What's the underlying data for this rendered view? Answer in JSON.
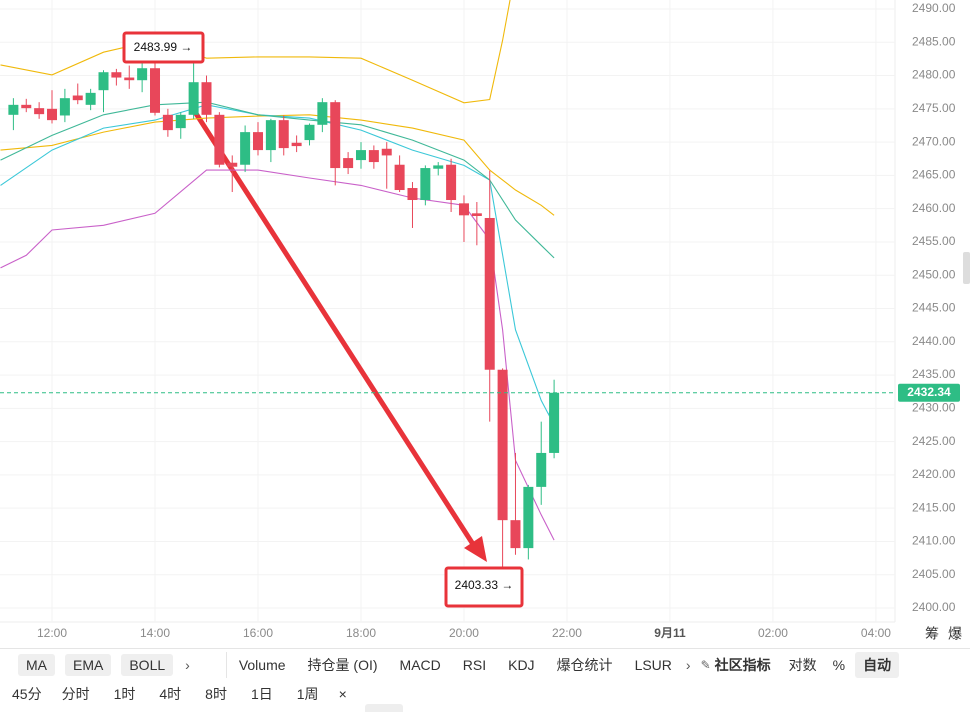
{
  "chart_data": {
    "type": "candlestick",
    "candles": {
      "x": [
        11.25,
        11.5,
        11.75,
        12,
        12.25,
        12.5,
        12.75,
        13,
        13.25,
        13.5,
        13.75,
        14,
        14.25,
        14.5,
        14.75,
        15,
        15.25,
        15.5,
        15.75,
        16,
        16.25,
        16.5,
        16.75,
        17,
        17.25,
        17.5,
        17.75,
        18,
        18.25,
        18.5,
        18.75,
        19,
        19.25,
        19.5,
        19.75,
        20,
        20.25,
        20.5,
        20.75,
        21,
        21.25,
        21.5,
        21.75
      ],
      "open": [
        2474.1,
        2475.6,
        2475.1,
        2475.0,
        2474.0,
        2477.0,
        2475.6,
        2477.8,
        2480.5,
        2479.7,
        2479.3,
        2481.1,
        2474.1,
        2472.1,
        2474.1,
        2479.0,
        2474.1,
        2466.9,
        2466.6,
        2471.5,
        2468.8,
        2473.3,
        2469.9,
        2470.3,
        2472.6,
        2476.0,
        2467.6,
        2467.3,
        2468.8,
        2469.0,
        2466.6,
        2463.1,
        2461.3,
        2466.0,
        2466.6,
        2460.8,
        2459.3,
        2458.6,
        2435.8,
        2413.2,
        2409.0,
        2418.2,
        2423.3
      ],
      "high": [
        2476.6,
        2476.5,
        2476.0,
        2477.8,
        2478.0,
        2478.8,
        2478.0,
        2480.8,
        2481.0,
        2481.5,
        2483.2,
        2482.0,
        2475.0,
        2474.5,
        2483.99,
        2480.0,
        2474.5,
        2468.0,
        2472.5,
        2473.0,
        2473.5,
        2474.0,
        2471.0,
        2472.8,
        2476.6,
        2476.3,
        2468.5,
        2470.0,
        2469.5,
        2470.0,
        2468.0,
        2464.0,
        2466.5,
        2467.0,
        2467.5,
        2462.0,
        2461.0,
        2465.7,
        2436.0,
        2423.3,
        2418.5,
        2428.0,
        2434.3
      ],
      "low": [
        2471.8,
        2474.5,
        2473.5,
        2472.8,
        2473.0,
        2475.7,
        2474.8,
        2474.5,
        2478.5,
        2478.0,
        2477.5,
        2474.0,
        2470.8,
        2470.5,
        2473.5,
        2473.0,
        2466.2,
        2462.5,
        2465.5,
        2468.0,
        2467.0,
        2468.0,
        2468.5,
        2469.5,
        2471.5,
        2463.5,
        2465.2,
        2466.0,
        2466.0,
        2463.0,
        2462.5,
        2457.1,
        2460.5,
        2465.0,
        2459.5,
        2455.0,
        2454.5,
        2428.0,
        2403.33,
        2408.0,
        2407.3,
        2415.5,
        2422.5
      ],
      "close": [
        2475.6,
        2475.1,
        2474.2,
        2473.3,
        2476.6,
        2476.3,
        2477.4,
        2480.5,
        2479.7,
        2479.3,
        2481.1,
        2474.4,
        2471.8,
        2474.1,
        2479.0,
        2474.1,
        2466.6,
        2466.3,
        2471.5,
        2468.8,
        2473.3,
        2469.1,
        2469.4,
        2472.6,
        2476.0,
        2466.1,
        2466.1,
        2468.8,
        2467.0,
        2468.0,
        2462.8,
        2461.3,
        2466.1,
        2466.5,
        2461.3,
        2459.0,
        2458.9,
        2435.8,
        2413.2,
        2409.0,
        2418.2,
        2423.3,
        2432.34
      ],
      "up_color": "#2ebd85",
      "down_color": "#e8475a"
    },
    "series": [
      {
        "color": "#f0b90b",
        "x": [
          11,
          12,
          13,
          14,
          15,
          16,
          17,
          18,
          19,
          20,
          20.5,
          20.75,
          21
        ],
        "values": [
          2481.6,
          2480.1,
          2483.5,
          2485.3,
          2482.6,
          2482.8,
          2482.8,
          2482.6,
          2479.3,
          2475.9,
          2476.4,
          2485.3,
          2495.8
        ]
      },
      {
        "color": "#f0b90b",
        "x": [
          11,
          12,
          13,
          14,
          15,
          16,
          17,
          18,
          19,
          20,
          20.5,
          21,
          21.5,
          21.75
        ],
        "values": [
          2468.8,
          2469.5,
          2471.5,
          2473.0,
          2473.6,
          2473.9,
          2474.1,
          2473.3,
          2472.1,
          2470.3,
          2465.8,
          2462.8,
          2460.5,
          2459.0
        ]
      },
      {
        "color": "#c961c9",
        "x": [
          11,
          11.5,
          12,
          13,
          14,
          15,
          16,
          17,
          18,
          19,
          20,
          20.5,
          20.75,
          21,
          21.5,
          21.75
        ],
        "values": [
          2451.1,
          2453.0,
          2456.8,
          2457.5,
          2459.3,
          2465.8,
          2465.8,
          2464.6,
          2463.5,
          2461.6,
          2460.5,
          2455.3,
          2441.8,
          2422.2,
          2414.0,
          2410.2
        ]
      },
      {
        "color": "#3cc8d8",
        "x": [
          11,
          12,
          13,
          14,
          15,
          16,
          17,
          18,
          19,
          20,
          20.5,
          21,
          21.5,
          21.65,
          21.75
        ],
        "values": [
          2463.5,
          2468.8,
          2472.1,
          2473.3,
          2475.6,
          2474.1,
          2473.6,
          2471.8,
          2468.8,
          2466.5,
          2464.3,
          2441.8,
          2431.2,
          2429.0,
          2432.0
        ]
      },
      {
        "color": "#40b898",
        "x": [
          11,
          12,
          13,
          14,
          15,
          16,
          17,
          18,
          19,
          20,
          20.5,
          21,
          21.5,
          21.75
        ],
        "values": [
          2467.3,
          2471.0,
          2474.1,
          2475.6,
          2476.0,
          2474.1,
          2473.3,
          2472.6,
          2470.3,
          2467.3,
          2464.3,
          2458.3,
          2454.5,
          2452.6
        ]
      }
    ],
    "xlim": [
      10.99,
      28.37
    ],
    "xticks": [
      {
        "value": 12,
        "label": "12:00"
      },
      {
        "value": 14,
        "label": "14:00"
      },
      {
        "value": 16,
        "label": "16:00"
      },
      {
        "value": 18,
        "label": "18:00"
      },
      {
        "value": 20,
        "label": "20:00"
      },
      {
        "value": 22,
        "label": "22:00"
      },
      {
        "value": 24,
        "label": "9月11"
      },
      {
        "value": 26,
        "label": "02:00"
      },
      {
        "value": 28,
        "label": "04:00"
      }
    ],
    "ylim": [
      2397.9,
      2491.35
    ],
    "yticks": [
      {
        "value": 2400,
        "label": "2400.00"
      },
      {
        "value": 2405,
        "label": "2405.00"
      },
      {
        "value": 2410,
        "label": "2410.00"
      },
      {
        "value": 2415,
        "label": "2415.00"
      },
      {
        "value": 2420,
        "label": "2420.00"
      },
      {
        "value": 2425,
        "label": "2425.00"
      },
      {
        "value": 2430,
        "label": "2430.00"
      },
      {
        "value": 2435,
        "label": "2435.00"
      },
      {
        "value": 2440,
        "label": "2440.00"
      },
      {
        "value": 2445,
        "label": "2445.00"
      },
      {
        "value": 2450,
        "label": "2450.00"
      },
      {
        "value": 2455,
        "label": "2455.00"
      },
      {
        "value": 2460,
        "label": "2460.00"
      },
      {
        "value": 2465,
        "label": "2465.00"
      },
      {
        "value": 2470,
        "label": "2470.00"
      },
      {
        "value": 2475,
        "label": "2475.00"
      },
      {
        "value": 2480,
        "label": "2480.00"
      },
      {
        "value": 2485,
        "label": "2485.00"
      },
      {
        "value": 2490,
        "label": "2490.00"
      }
    ],
    "grid": true,
    "last_price": 2432.34,
    "annotations": [
      {
        "text": "2483.99 →"
      },
      {
        "text": "2403.33 →"
      }
    ],
    "axis_icons": [
      "筹",
      "爆"
    ]
  },
  "toolbar": {
    "indicators": [
      "MA",
      "EMA",
      "BOLL"
    ],
    "sub_indicators": [
      "Volume",
      "持仓量 (OI)",
      "MACD",
      "RSI",
      "KDJ",
      "爆仓统计",
      "LSUR"
    ],
    "community": "社区指标",
    "log": "对数",
    "percent": "%",
    "auto": "自动",
    "intervals": [
      "45分",
      "分时",
      "1时",
      "4时",
      "8时",
      "1日",
      "1周"
    ],
    "close": "×"
  }
}
